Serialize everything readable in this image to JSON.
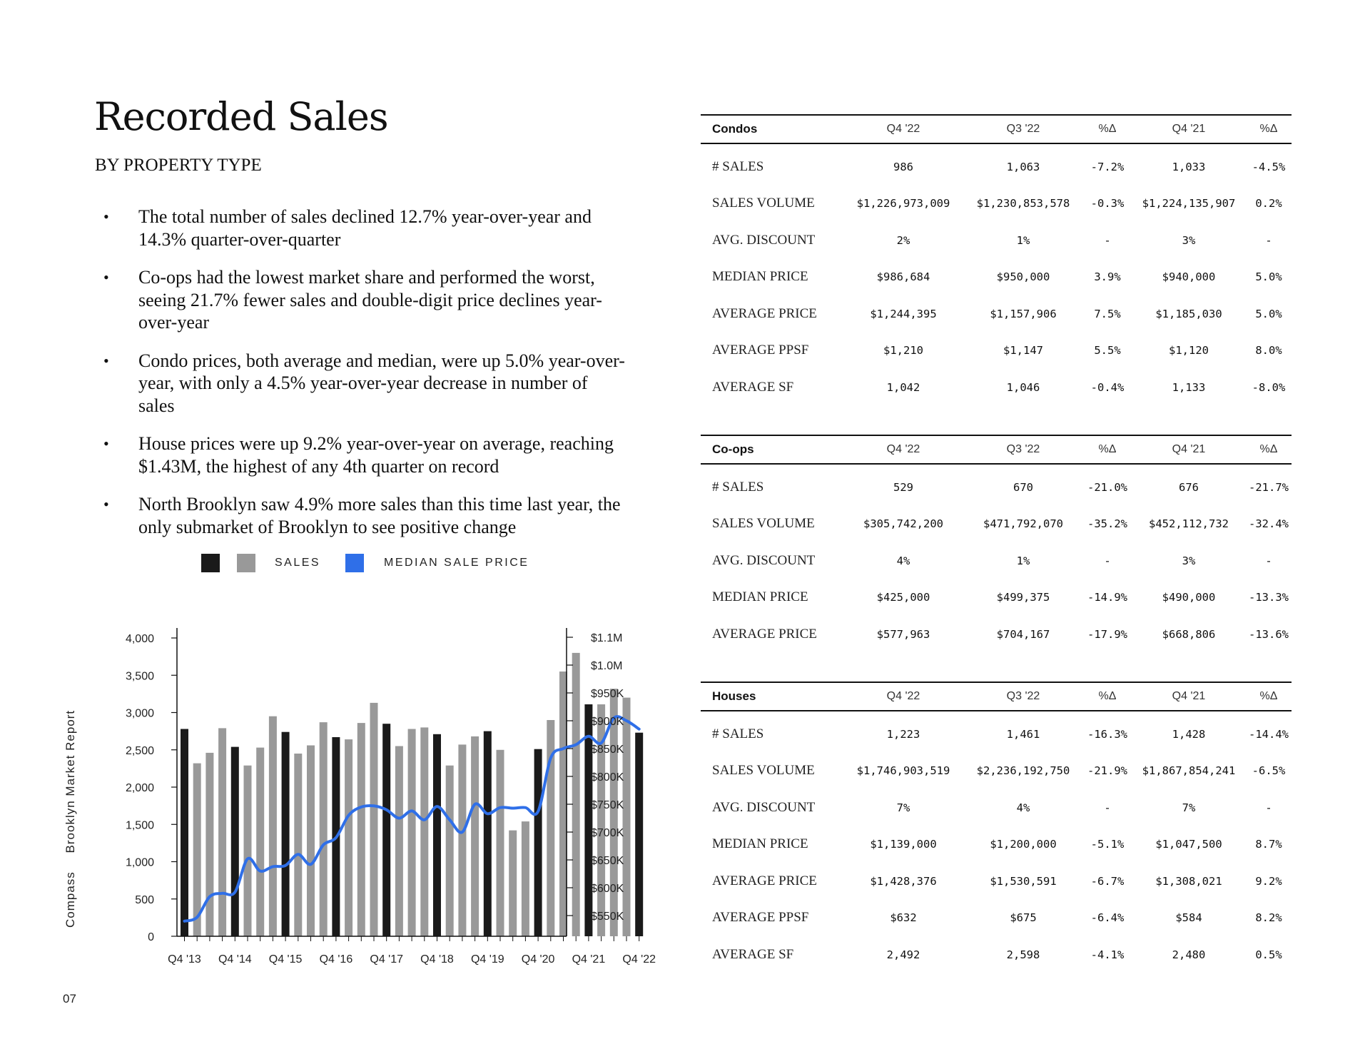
{
  "header": {
    "title": "Recorded Sales",
    "subtitle": "BY PROPERTY TYPE"
  },
  "bullets": [
    "The total number of sales declined 12.7% year-over-year and 14.3% quarter-over-quarter",
    "Co-ops had the lowest market share and performed the worst, seeing 21.7% fewer sales and double-digit price declines year-over-year",
    "Condo prices, both average and median, were up 5.0% year-over-year, with only a 4.5% year-over-year decrease in number of sales",
    "House prices were up 9.2% year-over-year on average, reaching $1.43M, the highest of any 4th quarter on record",
    "North Brooklyn saw 4.9% more sales than this time last year, the only submarket of Brooklyn to see positive change"
  ],
  "legend": {
    "sales_label": "SALES",
    "price_label": "MEDIAN SALE PRICE",
    "colors": {
      "sales_dark": "#1a1a1a",
      "sales_gray": "#999999",
      "price": "#2f6fe8"
    }
  },
  "chart_data": {
    "type": "bar",
    "title": "",
    "xlabel": "",
    "ylabel": "",
    "x_tick_labels": [
      "Q4 '13",
      "Q4 '14",
      "Q4 '15",
      "Q4 '16",
      "Q4 '17",
      "Q4 '18",
      "Q4 '19",
      "Q4 '20",
      "Q4 '21",
      "Q4 '22"
    ],
    "ylim_left": [
      0,
      4000
    ],
    "left_ticks": [
      "0",
      "500",
      "1,000",
      "1,500",
      "2,000",
      "2,500",
      "3,000",
      "3,500",
      "4,000"
    ],
    "ylim_right": [
      500000,
      1100000
    ],
    "right_ticks": [
      "$550K",
      "$600K",
      "$650K",
      "$700K",
      "$750K",
      "$800K",
      "$850K",
      "$900K",
      "$950K",
      "$1.0M",
      "$1.1M"
    ],
    "series": [
      {
        "name": "SALES",
        "axis": "left",
        "values": [
          2780,
          2320,
          2460,
          2790,
          2540,
          2290,
          2530,
          2950,
          2740,
          2450,
          2560,
          2870,
          2670,
          2640,
          2860,
          3130,
          2850,
          2550,
          2780,
          2800,
          2710,
          2290,
          2570,
          2680,
          2750,
          2500,
          1420,
          1540,
          2510,
          2900,
          3550,
          3800,
          3110,
          3110,
          3320,
          3200,
          2730
        ]
      },
      {
        "name": "MEDIAN SALE PRICE",
        "axis": "right",
        "values": [
          540000,
          547000,
          584000,
          590000,
          592000,
          652000,
          630000,
          638000,
          640000,
          660000,
          642000,
          677000,
          690000,
          730000,
          745000,
          747000,
          740000,
          725000,
          738000,
          722000,
          746000,
          722000,
          700000,
          750000,
          733000,
          744000,
          743000,
          744000,
          737000,
          833000,
          850000,
          857000,
          872000,
          860000,
          905000,
          900000,
          885000
        ]
      }
    ],
    "grid": false,
    "legend_position": "top"
  },
  "tables": [
    {
      "section": "Condos",
      "columns": [
        "Q4 '22",
        "Q3 '22",
        "%Δ",
        "Q4 '21",
        "%Δ"
      ],
      "rows": [
        [
          "# SALES",
          "986",
          "1,063",
          "-7.2%",
          "1,033",
          "-4.5%"
        ],
        [
          "SALES VOLUME",
          "$1,226,973,009",
          "$1,230,853,578",
          "-0.3%",
          "$1,224,135,907",
          "0.2%"
        ],
        [
          "AVG. DISCOUNT",
          "2%",
          "1%",
          "-",
          "3%",
          "-"
        ],
        [
          "MEDIAN PRICE",
          "$986,684",
          "$950,000",
          "3.9%",
          "$940,000",
          "5.0%"
        ],
        [
          "AVERAGE PRICE",
          "$1,244,395",
          "$1,157,906",
          "7.5%",
          "$1,185,030",
          "5.0%"
        ],
        [
          "AVERAGE PPSF",
          "$1,210",
          "$1,147",
          "5.5%",
          "$1,120",
          "8.0%"
        ],
        [
          "AVERAGE SF",
          "1,042",
          "1,046",
          "-0.4%",
          "1,133",
          "-8.0%"
        ]
      ]
    },
    {
      "section": "Co-ops",
      "columns": [
        "Q4 '22",
        "Q3 '22",
        "%Δ",
        "Q4 '21",
        "%Δ"
      ],
      "rows": [
        [
          "# SALES",
          "529",
          "670",
          "-21.0%",
          "676",
          "-21.7%"
        ],
        [
          "SALES VOLUME",
          "$305,742,200",
          "$471,792,070",
          "-35.2%",
          "$452,112,732",
          "-32.4%"
        ],
        [
          "AVG. DISCOUNT",
          "4%",
          "1%",
          "-",
          "3%",
          "-"
        ],
        [
          "MEDIAN PRICE",
          "$425,000",
          "$499,375",
          "-14.9%",
          "$490,000",
          "-13.3%"
        ],
        [
          "AVERAGE PRICE",
          "$577,963",
          "$704,167",
          "-17.9%",
          "$668,806",
          "-13.6%"
        ]
      ]
    },
    {
      "section": "Houses",
      "columns": [
        "Q4 '22",
        "Q3 '22",
        "%Δ",
        "Q4 '21",
        "%Δ"
      ],
      "rows": [
        [
          "# SALES",
          "1,223",
          "1,461",
          "-16.3%",
          "1,428",
          "-14.4%"
        ],
        [
          "SALES VOLUME",
          "$1,746,903,519",
          "$2,236,192,750",
          "-21.9%",
          "$1,867,854,241",
          "-6.5%"
        ],
        [
          "AVG. DISCOUNT",
          "7%",
          "4%",
          "-",
          "7%",
          "-"
        ],
        [
          "MEDIAN PRICE",
          "$1,139,000",
          "$1,200,000",
          "-5.1%",
          "$1,047,500",
          "8.7%"
        ],
        [
          "AVERAGE PRICE",
          "$1,428,376",
          "$1,530,591",
          "-6.7%",
          "$1,308,021",
          "9.2%"
        ],
        [
          "AVERAGE PPSF",
          "$632",
          "$675",
          "-6.4%",
          "$584",
          "8.2%"
        ],
        [
          "AVERAGE SF",
          "2,492",
          "2,598",
          "-4.1%",
          "2,480",
          "0.5%"
        ]
      ]
    }
  ],
  "footer": {
    "brand": "Compass",
    "report": "Brooklyn Market Report",
    "page": "07"
  }
}
